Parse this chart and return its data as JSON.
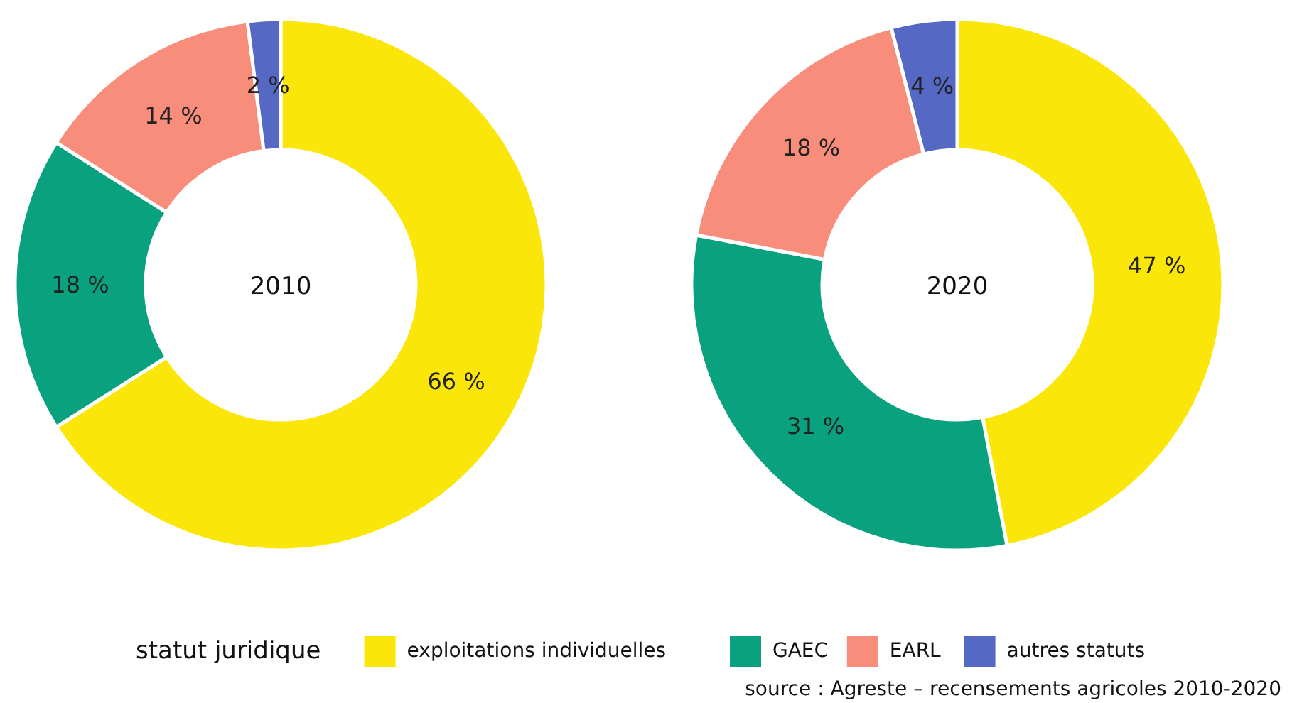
{
  "chart_data": {
    "type": "donut",
    "categories": [
      "exploitations individuelles",
      "GAEC",
      "EARL",
      "autres statuts"
    ],
    "colors": [
      "#fbe60a",
      "#0aa27e",
      "#f98d7c",
      "#5468c4"
    ],
    "legend": "bottom",
    "legend_title": "statut juridique",
    "series": [
      {
        "name": "2010",
        "values": [
          66,
          18,
          14,
          2
        ],
        "value_labels": [
          "66 %",
          "18 %",
          "14 %",
          "2 %"
        ]
      },
      {
        "name": "2020",
        "values": [
          47,
          31,
          18,
          4
        ],
        "value_labels": [
          "47 %",
          "31 %",
          "18 %",
          "4 %"
        ]
      }
    ],
    "annotations": [
      "source : Agreste – recensements agricoles 2010-2020"
    ]
  }
}
